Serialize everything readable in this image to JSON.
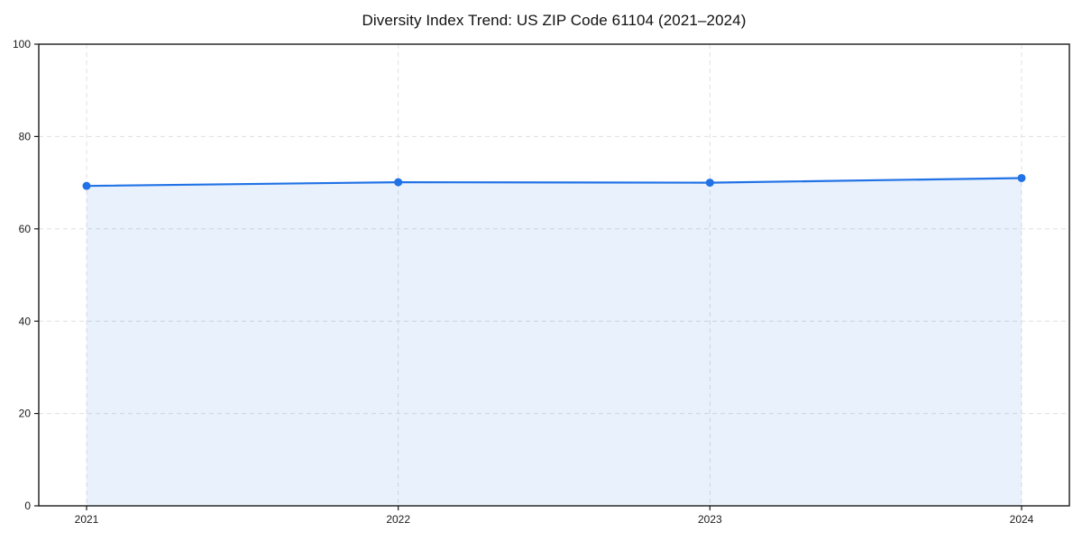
{
  "chart_data": {
    "type": "area",
    "title": "Diversity Index Trend: US ZIP Code 61104 (2021–2024)",
    "series_name": "Diversity Index",
    "categories": [
      "2021",
      "2022",
      "2023",
      "2024"
    ],
    "values": [
      69.3,
      70.1,
      70.0,
      71.0
    ],
    "xlabel": "",
    "ylabel": "",
    "ylim": [
      0,
      100
    ],
    "yticks": [
      0,
      20,
      40,
      60,
      80,
      100
    ],
    "grid": true,
    "grid_style": "dashed",
    "legend_position": "none",
    "marker": "circle",
    "colors": {
      "line": "#2172e6",
      "marker": "#2172e6",
      "fill": "#2172e6",
      "fill_opacity": 0.1,
      "gridline": "#e0e0e0",
      "spine": "#1a1a1a",
      "tick_label": "#1a1a1a",
      "title": "#111111",
      "background": "#ffffff"
    }
  }
}
